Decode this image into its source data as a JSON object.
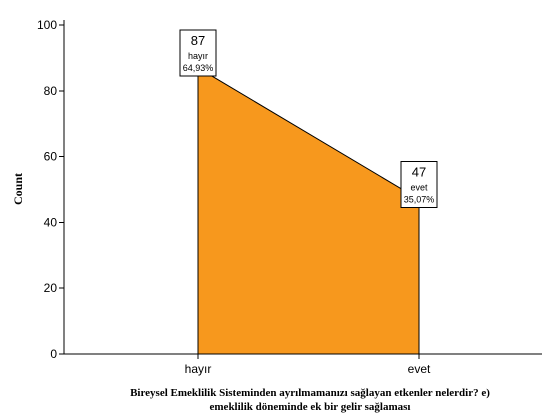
{
  "chart_data": {
    "type": "area",
    "categories": [
      "hayır",
      "evet"
    ],
    "values": [
      87,
      47
    ],
    "percent_labels": [
      "64,93%",
      "35,07%"
    ],
    "ylabel": "Count",
    "xlabel_lines": [
      "Bireysel Emeklilik Sisteminden ayrılmamanızı sağlayan etkenler nelerdir? e)",
      "emeklilik döneminde ek bir gelir sağlaması"
    ],
    "ylim": [
      0,
      100
    ],
    "yticks": [
      0,
      20,
      40,
      60,
      80,
      100
    ],
    "grid": false,
    "fill_color": "#f7981d"
  }
}
